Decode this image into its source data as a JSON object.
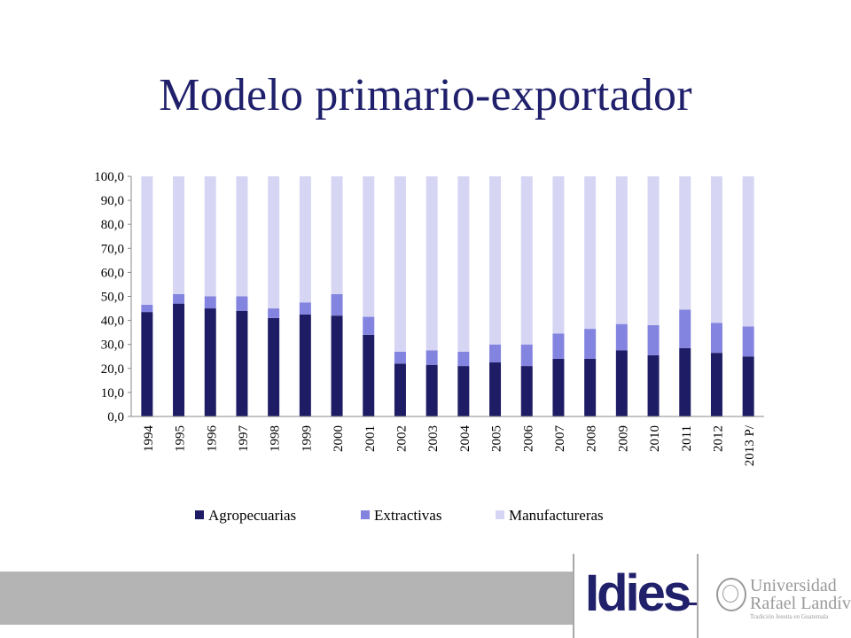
{
  "slide": {
    "title": "Modelo primario-exportador"
  },
  "chart_data": {
    "type": "bar",
    "stacked": true,
    "categories": [
      "1994",
      "1995",
      "1996",
      "1997",
      "1998",
      "1999",
      "2000",
      "2001",
      "2002",
      "2003",
      "2004",
      "2005",
      "2006",
      "2007",
      "2008",
      "2009",
      "2010",
      "2011",
      "2012",
      "2013 P/"
    ],
    "series": [
      {
        "name": "Agropecuarias",
        "color": "#1e1c64",
        "values": [
          43.5,
          47.0,
          45.0,
          44.0,
          41.0,
          42.5,
          42.0,
          34.0,
          22.0,
          21.5,
          21.0,
          22.5,
          21.0,
          24.0,
          24.0,
          27.5,
          25.5,
          28.5,
          26.5,
          25.0
        ]
      },
      {
        "name": "Extractivas",
        "color": "#8383e0",
        "values": [
          3.0,
          4.0,
          5.0,
          6.0,
          4.0,
          5.0,
          9.0,
          7.5,
          5.0,
          6.0,
          6.0,
          7.5,
          9.0,
          10.5,
          12.5,
          11.0,
          12.5,
          16.0,
          12.5,
          12.5
        ]
      },
      {
        "name": "Manufactureras",
        "color": "#d6d6f4",
        "values": [
          53.5,
          49.0,
          50.0,
          50.0,
          55.0,
          52.5,
          49.0,
          58.5,
          73.0,
          72.5,
          73.0,
          70.0,
          70.0,
          65.5,
          63.5,
          61.5,
          62.0,
          55.5,
          61.0,
          62.5
        ]
      }
    ],
    "ylim": [
      0,
      100
    ],
    "yticks": [
      "0,0",
      "10,0",
      "20,0",
      "30,0",
      "40,0",
      "50,0",
      "60,0",
      "70,0",
      "80,0",
      "90,0",
      "100,0"
    ],
    "legend_position": "bottom",
    "grid": false
  },
  "logos": {
    "idies": "Idies",
    "university_line1": "Universidad",
    "university_line2": "Rafael Landívar",
    "university_tagline": "Tradición Jesuita en Guatemala",
    "seal": "university-seal-icon"
  }
}
